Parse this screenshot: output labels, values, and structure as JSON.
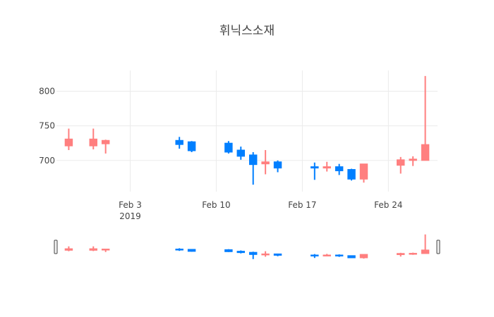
{
  "chart_data": {
    "type": "candlestick",
    "title": "휘닉스소재",
    "xlabel": "",
    "ylabel": "",
    "x_range": [
      "2019-01-28",
      "2019-02-28"
    ],
    "y_range": [
      655,
      830
    ],
    "y_ticks": [
      700,
      750,
      800
    ],
    "x_ticks": [
      {
        "date": "2019-02-03",
        "label": "Feb 3",
        "sublabel": "2019"
      },
      {
        "date": "2019-02-10",
        "label": "Feb 10",
        "sublabel": ""
      },
      {
        "date": "2019-02-17",
        "label": "Feb 17",
        "sublabel": ""
      },
      {
        "date": "2019-02-24",
        "label": "Feb 24",
        "sublabel": ""
      }
    ],
    "increasing_color": "#ff7f7f",
    "decreasing_color": "#007fff",
    "grid": true,
    "range_slider": true,
    "candles": [
      {
        "date": "2019-01-29",
        "open": 721,
        "high": 746,
        "low": 715,
        "close": 731
      },
      {
        "date": "2019-01-31",
        "open": 721,
        "high": 746,
        "low": 716,
        "close": 731
      },
      {
        "date": "2019-02-01",
        "open": 724,
        "high": 730,
        "low": 710,
        "close": 729
      },
      {
        "date": "2019-02-07",
        "open": 729,
        "high": 734,
        "low": 717,
        "close": 723
      },
      {
        "date": "2019-02-08",
        "open": 727,
        "high": 728,
        "low": 712,
        "close": 714
      },
      {
        "date": "2019-02-11",
        "open": 725,
        "high": 728,
        "low": 710,
        "close": 712
      },
      {
        "date": "2019-02-12",
        "open": 715,
        "high": 720,
        "low": 701,
        "close": 706
      },
      {
        "date": "2019-02-13",
        "open": 708,
        "high": 712,
        "low": 665,
        "close": 694
      },
      {
        "date": "2019-02-14",
        "open": 695,
        "high": 715,
        "low": 680,
        "close": 698
      },
      {
        "date": "2019-02-15",
        "open": 698,
        "high": 700,
        "low": 683,
        "close": 689
      },
      {
        "date": "2019-02-18",
        "open": 691,
        "high": 697,
        "low": 672,
        "close": 689
      },
      {
        "date": "2019-02-19",
        "open": 689,
        "high": 698,
        "low": 684,
        "close": 691
      },
      {
        "date": "2019-02-20",
        "open": 691,
        "high": 695,
        "low": 679,
        "close": 685
      },
      {
        "date": "2019-02-21",
        "open": 687,
        "high": 688,
        "low": 671,
        "close": 673
      },
      {
        "date": "2019-02-22",
        "open": 673,
        "high": 695,
        "low": 668,
        "close": 695
      },
      {
        "date": "2019-02-25",
        "open": 693,
        "high": 705,
        "low": 681,
        "close": 701
      },
      {
        "date": "2019-02-26",
        "open": 700,
        "high": 706,
        "low": 692,
        "close": 702
      },
      {
        "date": "2019-02-27",
        "open": 700,
        "high": 822,
        "low": 700,
        "close": 723
      }
    ]
  }
}
